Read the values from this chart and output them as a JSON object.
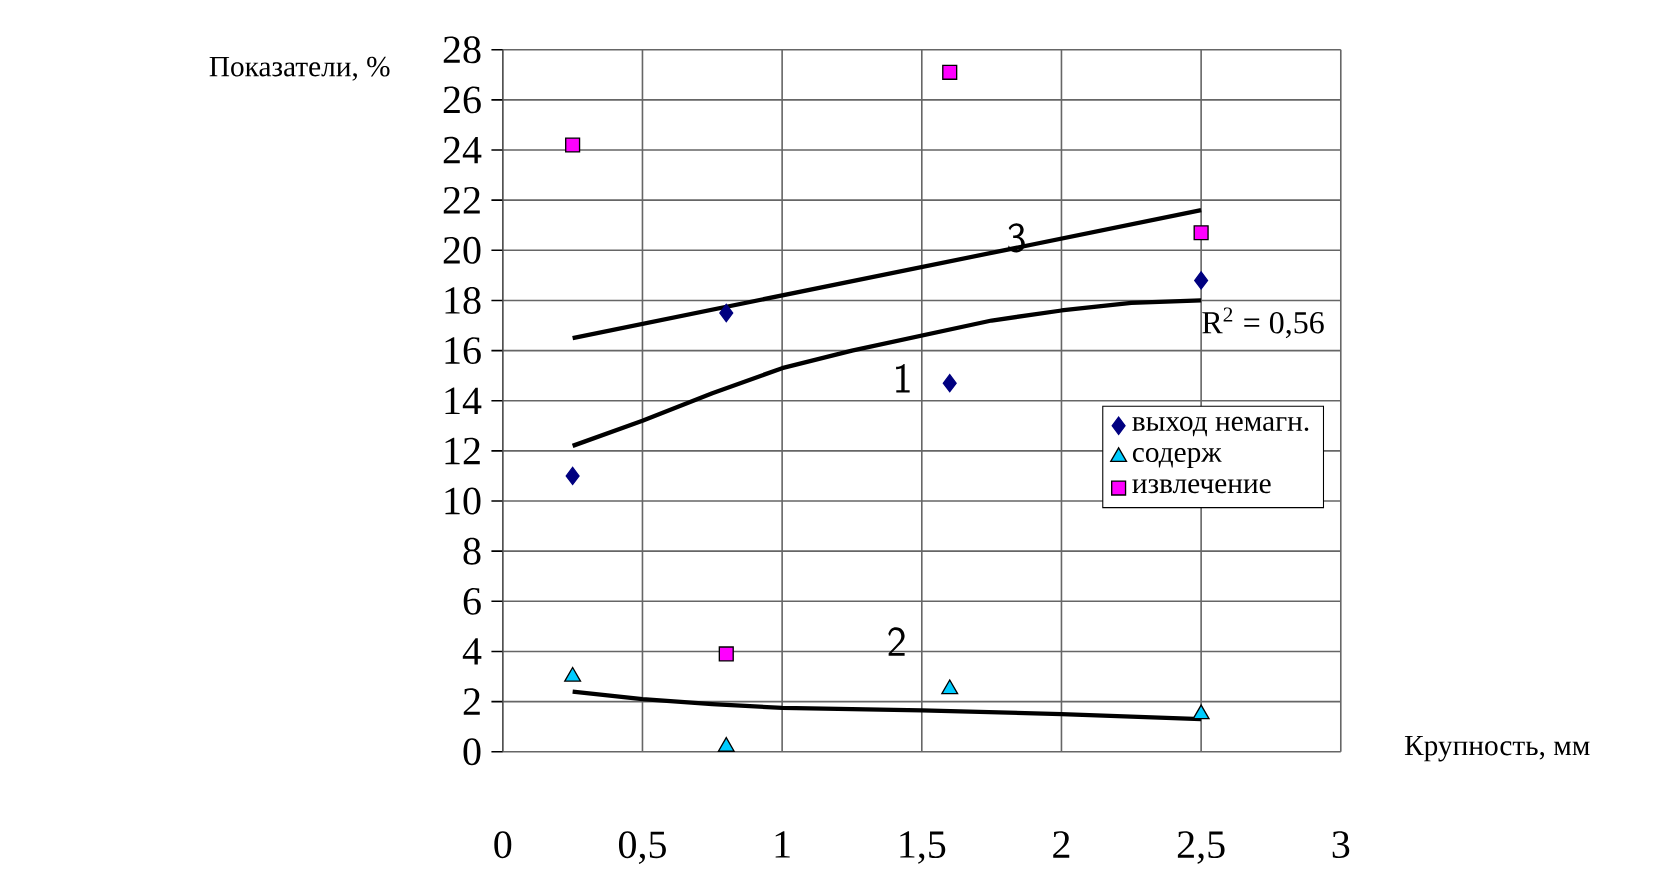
{
  "chart_data": {
    "type": "scatter",
    "xlabel": "Крупность, мм",
    "ylabel": "Показатели, %",
    "xlim": [
      0,
      3
    ],
    "ylim": [
      0,
      28
    ],
    "xticks": [
      0,
      {
        "value": 0.5,
        "label": "0,5"
      },
      1,
      {
        "value": 1.5,
        "label": "1,5"
      },
      2,
      {
        "value": 2.5,
        "label": "2,5"
      },
      3
    ],
    "yticks": [
      0,
      2,
      4,
      6,
      8,
      10,
      12,
      14,
      16,
      18,
      20,
      22,
      24,
      26,
      28
    ],
    "grid": true,
    "legend": "right",
    "series": [
      {
        "name": "выход немагн.",
        "color": "#000080",
        "marker": "diamond",
        "x": [
          0.25,
          0.8,
          1.6,
          2.5
        ],
        "values": [
          11,
          17.5,
          14.7,
          18.8
        ]
      },
      {
        "name": "содерж",
        "color": "#00ccff",
        "marker": "triangle",
        "x": [
          0.25,
          0.8,
          1.6,
          2.5
        ],
        "values": [
          3.0,
          0.2,
          2.5,
          1.5
        ]
      },
      {
        "name": "извлечение",
        "color": "#ff00ff",
        "marker": "square",
        "x": [
          0.25,
          0.8,
          1.6,
          2.5
        ],
        "values": [
          24.2,
          3.9,
          27.1,
          20.7
        ]
      },
      {
        "type": "line",
        "color": "#000000",
        "marker": "none",
        "x": [
          0.25,
          0.5,
          0.75,
          1.0,
          1.25,
          1.5,
          1.75,
          2.0,
          2.25,
          2.5
        ],
        "values": [
          12.2,
          13.2,
          14.3,
          15.3,
          16.0,
          16.6,
          17.2,
          17.6,
          17.9,
          18.0
        ]
      },
      {
        "type": "line",
        "color": "#000000",
        "marker": "none",
        "x": [
          0.25,
          0.5,
          0.75,
          1.0,
          1.5,
          2.0,
          2.5
        ],
        "values": [
          2.4,
          2.1,
          1.9,
          1.75,
          1.65,
          1.5,
          1.3
        ]
      },
      {
        "type": "line",
        "color": "#000000",
        "marker": "none",
        "x": [
          0.25,
          2.5
        ],
        "values": [
          16.5,
          21.6
        ]
      }
    ],
    "annotations": [
      "1",
      "2",
      "3",
      "R$^{2}$ = 0,56"
    ]
  }
}
